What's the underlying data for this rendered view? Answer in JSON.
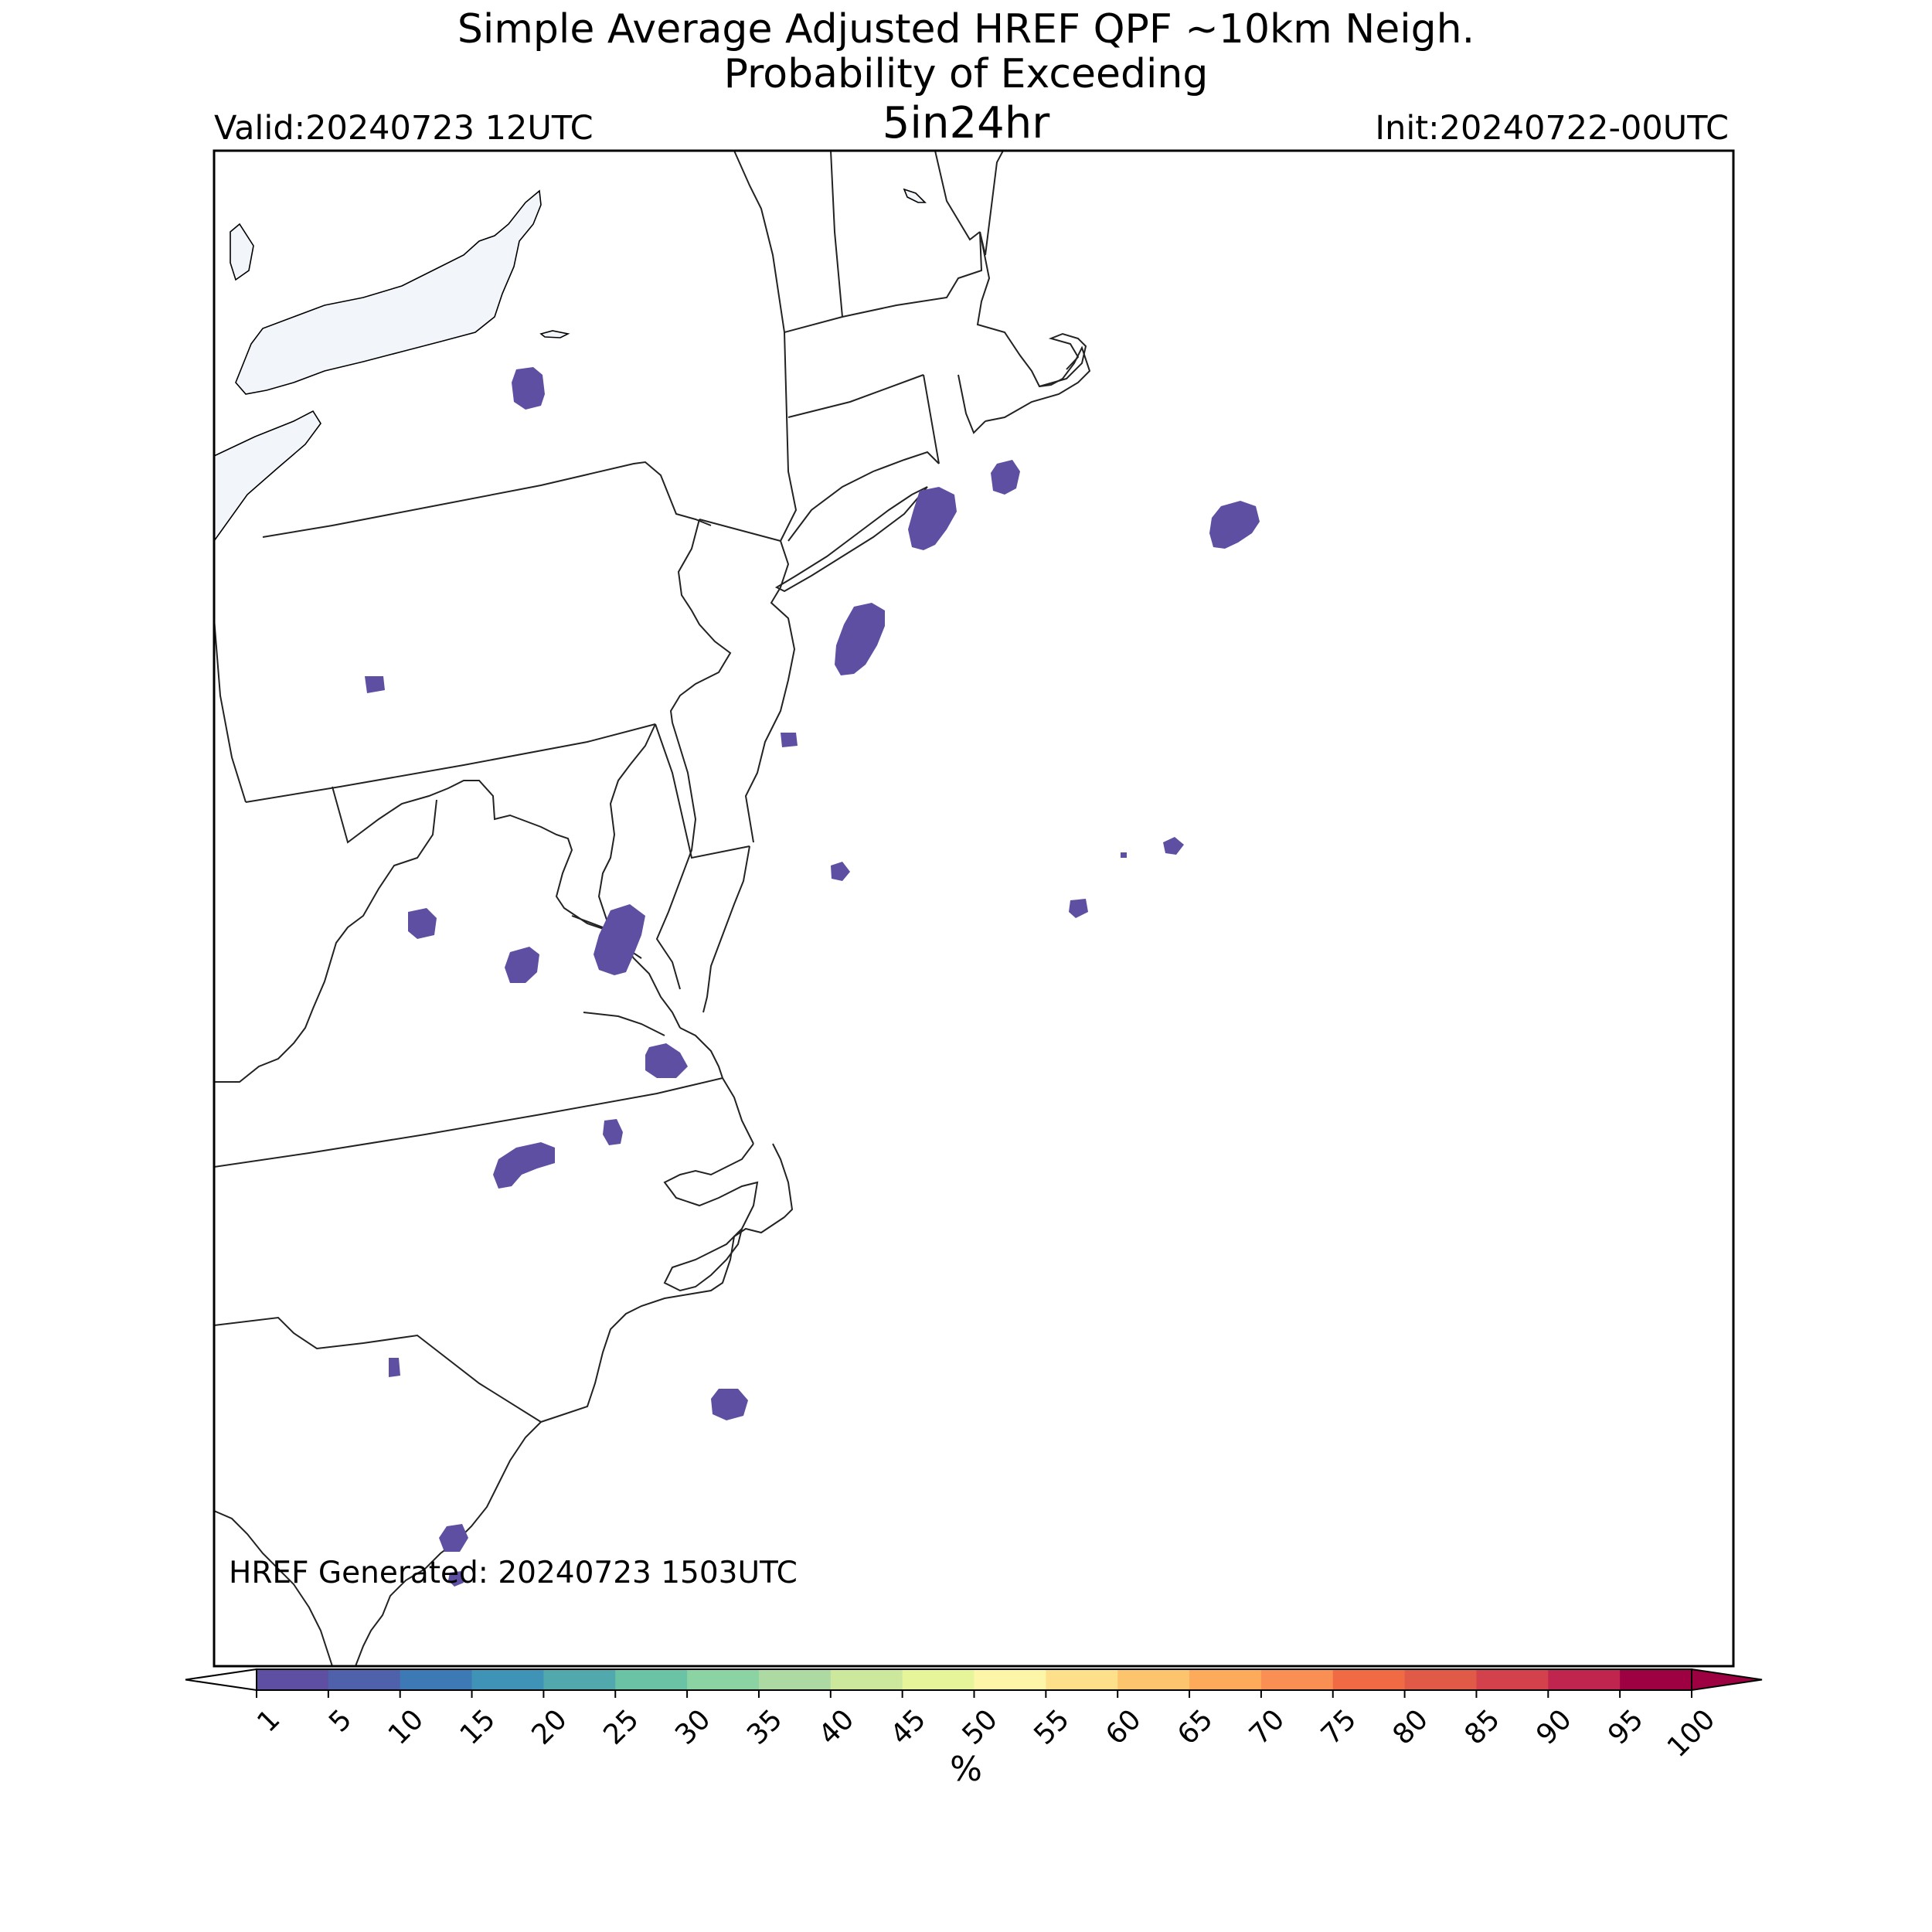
{
  "title": {
    "line1": "Simple Average Adjusted HREF QPF ~10km Neigh.",
    "line2": "Probability of Exceeding",
    "threshold": "5in24hr"
  },
  "valid": "Valid:20240723 12UTC",
  "init": "Init:20240722-00UTC",
  "generated": "HREF Generated: 20240723 1503UTC",
  "colorbar": {
    "unit": "%",
    "ticks": [
      "1",
      "5",
      "10",
      "15",
      "20",
      "25",
      "30",
      "35",
      "40",
      "45",
      "50",
      "55",
      "60",
      "65",
      "70",
      "75",
      "80",
      "85",
      "90",
      "95",
      "100"
    ],
    "colors": [
      "#5e4fa2",
      "#4f61aa",
      "#3d7ab5",
      "#3f93b7",
      "#51a9ae",
      "#6bc3a5",
      "#8cd3a4",
      "#add9a3",
      "#cbe89d",
      "#e6f599",
      "#fdf6a8",
      "#fee08b",
      "#fdc46e",
      "#fdaa5b",
      "#f98f52",
      "#f06b44",
      "#e05a47",
      "#d3424c",
      "#bf254f",
      "#9e0142"
    ],
    "under_color": "#ffffff",
    "over_color": "#9e0142"
  },
  "map": {
    "land_color": "#ffffff",
    "water_color": "#f2f6fb",
    "border_color": "#000000",
    "probability_color": "#5e4fa2",
    "region": "Mid-Atlantic / Northeast US"
  }
}
